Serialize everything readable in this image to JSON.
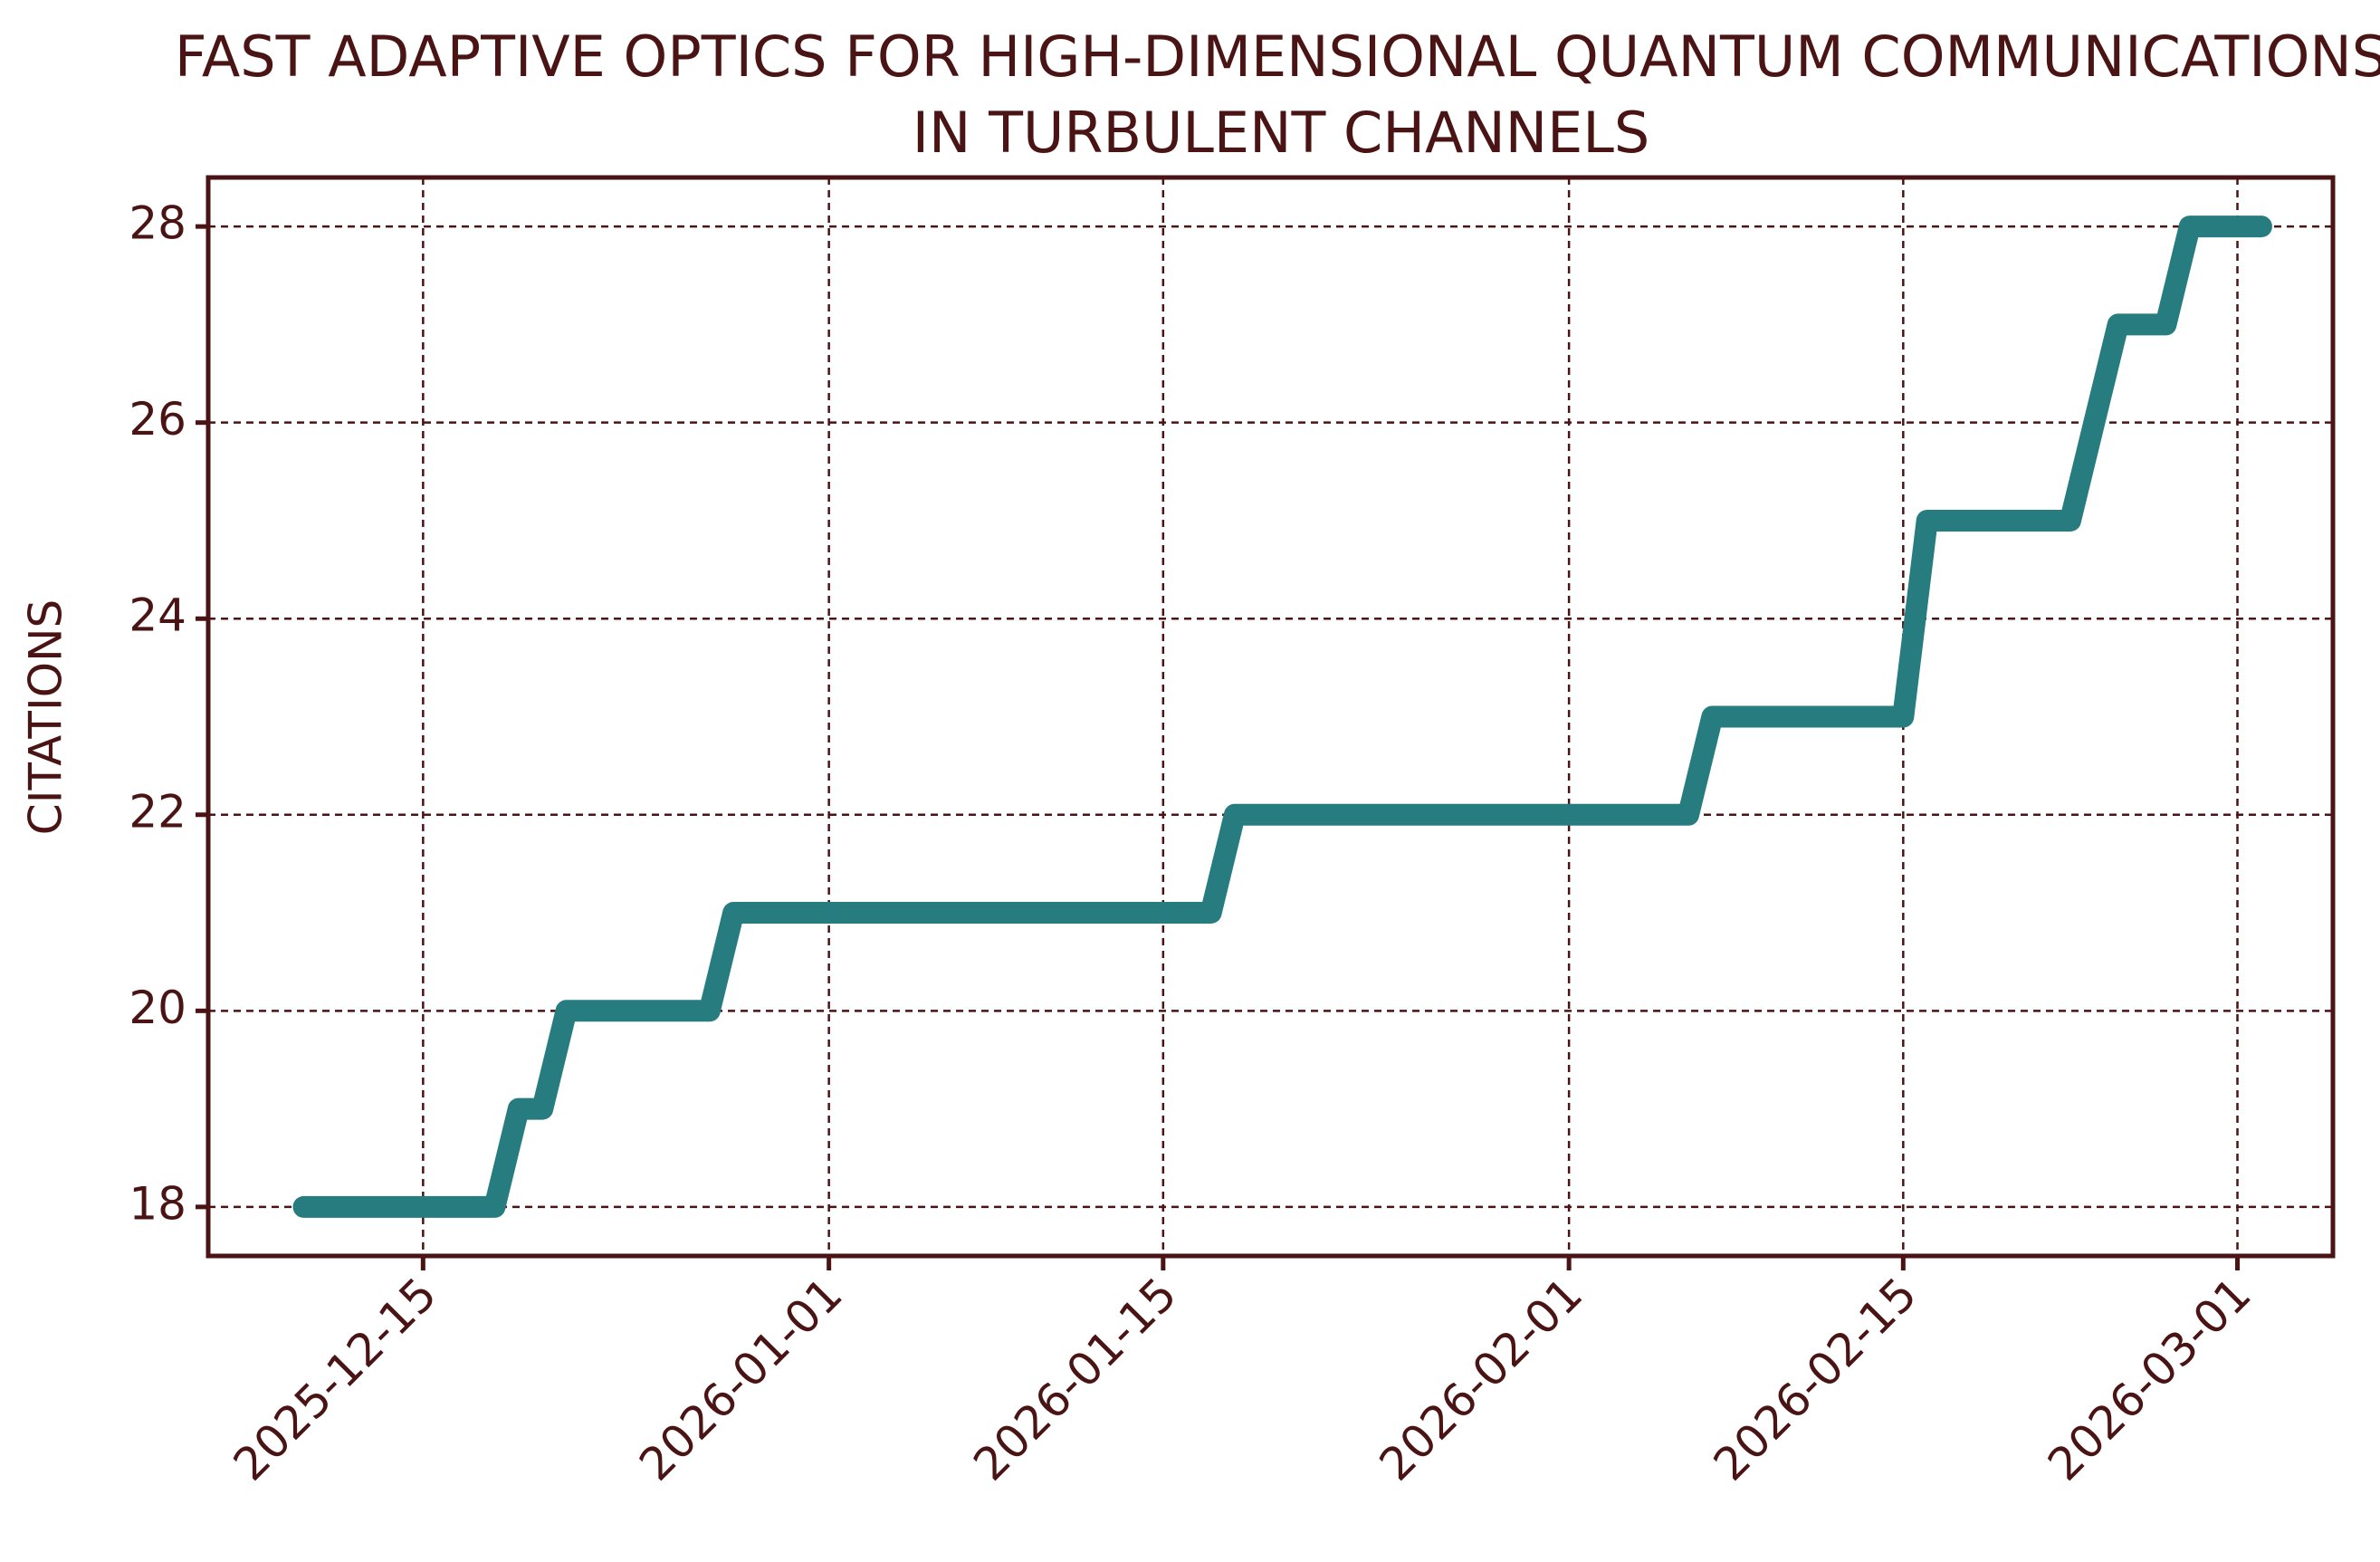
{
  "chart_data": {
    "type": "line",
    "title": "FAST ADAPTIVE OPTICS FOR HIGH-DIMENSIONAL QUANTUM COMMUNICATIONS IN TURBULENT CHANNELS",
    "ylabel": "CITATIONS",
    "x": [
      "2025-12-10",
      "2025-12-18",
      "2025-12-19",
      "2025-12-20",
      "2025-12-21",
      "2025-12-27",
      "2025-12-28",
      "2026-01-17",
      "2026-01-18",
      "2026-02-06",
      "2026-02-07",
      "2026-02-15",
      "2026-02-16",
      "2026-02-22",
      "2026-02-24",
      "2026-02-26",
      "2026-02-27",
      "2026-03-02"
    ],
    "series": [
      {
        "name": "citations",
        "color": "#277c80",
        "values": [
          18,
          18,
          19,
          19,
          20,
          20,
          21,
          21,
          22,
          22,
          23,
          23,
          25,
          25,
          27,
          27,
          28,
          28
        ]
      }
    ],
    "xlim": [
      "2025-12-06",
      "2026-03-05"
    ],
    "xticks": [
      "2025-12-15",
      "2026-01-01",
      "2026-01-15",
      "2026-02-01",
      "2026-02-15",
      "2026-03-01"
    ],
    "ylim": [
      17.5,
      28.5
    ],
    "yticks": [
      18,
      20,
      22,
      24,
      26,
      28
    ],
    "grid": true
  }
}
